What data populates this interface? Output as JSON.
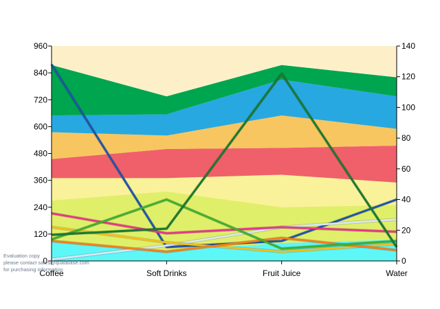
{
  "chart_data": {
    "type": "area",
    "categories": [
      "Coffee",
      "Soft Drinks",
      "Fruit Juice",
      "Water"
    ],
    "left_axis": {
      "min": 0,
      "max": 960,
      "step": 120,
      "ticks": [
        "0",
        "120",
        "240",
        "360",
        "480",
        "600",
        "720",
        "840",
        "960"
      ]
    },
    "right_axis": {
      "min": 0,
      "max": 140,
      "step": 20,
      "ticks": [
        "0",
        "20",
        "40",
        "60",
        "80",
        "100",
        "120",
        "140"
      ]
    },
    "plot_background": "#fdf0c8",
    "stacked_area_series": [
      {
        "color": "#5ef7f7",
        "values": [
          90,
          45,
          80,
          95
        ]
      },
      {
        "color": "#e0ef6a",
        "values": [
          180,
          265,
          160,
          155
        ]
      },
      {
        "color": "#faf29a",
        "values": [
          100,
          60,
          145,
          100
        ]
      },
      {
        "color": "#f0606a",
        "values": [
          85,
          130,
          120,
          165
        ]
      },
      {
        "color": "#f7c660",
        "values": [
          120,
          60,
          145,
          75
        ]
      },
      {
        "color": "#28a8e0",
        "values": [
          75,
          95,
          160,
          145
        ]
      },
      {
        "color": "#00a550",
        "values": [
          225,
          80,
          65,
          85
        ]
      }
    ],
    "line_series": [
      {
        "color": "#1f56a8",
        "values": [
          128,
          9,
          13,
          40
        ]
      },
      {
        "color": "#d8e6f4",
        "values": [
          1,
          10,
          22,
          27
        ]
      },
      {
        "color": "#e8388a",
        "values": [
          31,
          18,
          22,
          19
        ]
      },
      {
        "color": "#f0c020",
        "values": [
          22,
          12,
          6,
          11
        ]
      },
      {
        "color": "#f08020",
        "values": [
          13,
          6,
          15,
          7
        ]
      },
      {
        "color": "#40b030",
        "values": [
          14,
          40,
          8,
          13
        ]
      },
      {
        "color": "#1a7a30",
        "values": [
          17,
          21,
          122,
          9
        ]
      }
    ],
    "legend": "none",
    "grid": false
  },
  "watermark": {
    "line1": "Evaluation copy",
    "line2": "please contact sales@quadbase.com",
    "line3": "for purchasing information"
  }
}
